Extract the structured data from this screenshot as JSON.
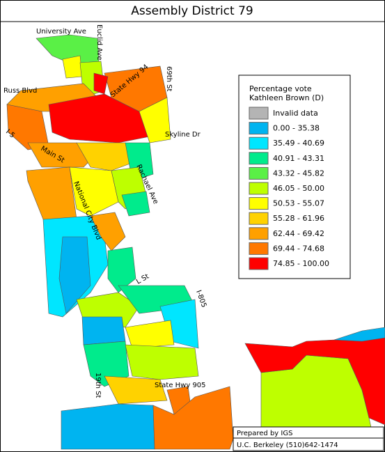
{
  "title": "Assembly District 79",
  "legend": {
    "title": [
      "Percentage vote",
      "Kathleen Brown (D)"
    ],
    "items": [
      {
        "label": "Invalid data",
        "color": "#b4b4b4"
      },
      {
        "label": "0.00 -  35.38",
        "color": "#00b4f0"
      },
      {
        "label": "35.49 -  40.69",
        "color": "#00e6ff"
      },
      {
        "label": "40.91 -  43.31",
        "color": "#00eb8c"
      },
      {
        "label": "43.32 -  45.82",
        "color": "#5af046"
      },
      {
        "label": "46.05 -  50.00",
        "color": "#beff00"
      },
      {
        "label": "50.53 -  55.07",
        "color": "#ffff00"
      },
      {
        "label": "55.28 -  61.96",
        "color": "#ffd200"
      },
      {
        "label": "62.44 -  69.42",
        "color": "#ffa000"
      },
      {
        "label": "69.44 -  74.68",
        "color": "#ff7800"
      },
      {
        "label": "74.85 - 100.00",
        "color": "#ff0000"
      }
    ]
  },
  "street_labels": [
    "University Ave",
    "Euclid Ave",
    "State Hwy 94",
    "69th St",
    "Russ Blvd",
    "Skyline Dr",
    "I-5",
    "Main St",
    "Rachael Ave",
    "National City Blvd",
    "L St",
    "I-805",
    "19th St",
    "State Hwy 905"
  ],
  "credits": [
    "Prepared by IGS",
    "U.C. Berkeley (510)642-1474"
  ]
}
